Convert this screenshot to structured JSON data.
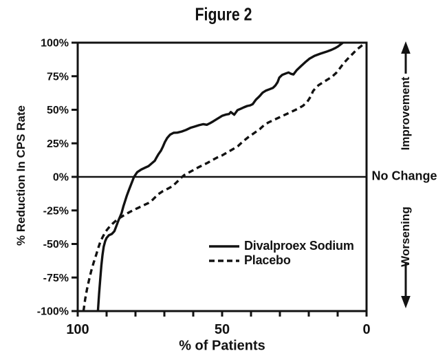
{
  "title": "Figure 2",
  "annotations": {
    "improvement": "Improvement",
    "no_change": "No Change",
    "worsening": "Worsening"
  },
  "colors": {
    "ink": "#121212",
    "background": "#ffffff"
  },
  "chart_data": {
    "type": "line",
    "title": "Figure 2",
    "xlabel": "% of Patients",
    "ylabel": "% Reduction In CPS Rate",
    "x_axis": {
      "range": [
        100,
        0
      ],
      "reversed": true,
      "tick_step": 10,
      "labeled_ticks": [
        {
          "value": 100,
          "label": "100"
        },
        {
          "value": 50,
          "label": "50"
        },
        {
          "value": 0,
          "label": "0"
        }
      ]
    },
    "y_axis": {
      "range": [
        -100,
        100
      ],
      "ticks": [
        {
          "value": 100,
          "label": "100%"
        },
        {
          "value": 75,
          "label": "75%"
        },
        {
          "value": 50,
          "label": "50%"
        },
        {
          "value": 25,
          "label": "25%"
        },
        {
          "value": 0,
          "label": "0%"
        },
        {
          "value": -25,
          "label": "-25%"
        },
        {
          "value": -50,
          "label": "-50%"
        },
        {
          "value": -75,
          "label": "-75%"
        },
        {
          "value": -100,
          "label": "-100%"
        }
      ]
    },
    "reference_line": {
      "y": 0,
      "label": "No Change"
    },
    "legend": {
      "position": "inside-lower-right"
    },
    "series": [
      {
        "name": "Divalproex Sodium",
        "style": "solid",
        "points": [
          [
            93,
            -100
          ],
          [
            92.6,
            -87
          ],
          [
            92.2,
            -76
          ],
          [
            91.8,
            -66
          ],
          [
            91.4,
            -58
          ],
          [
            91,
            -52
          ],
          [
            90.5,
            -48
          ],
          [
            90,
            -45.5
          ],
          [
            89.2,
            -43.5
          ],
          [
            88.2,
            -42.5
          ],
          [
            87.3,
            -40.5
          ],
          [
            86.6,
            -36.5
          ],
          [
            86,
            -33
          ],
          [
            85.4,
            -30
          ],
          [
            84.8,
            -27
          ],
          [
            84.2,
            -22
          ],
          [
            83.6,
            -18
          ],
          [
            83,
            -14
          ],
          [
            82.3,
            -10
          ],
          [
            81.5,
            -5.5
          ],
          [
            80.5,
            0
          ],
          [
            79.4,
            3.5
          ],
          [
            78,
            5.5
          ],
          [
            76.5,
            7
          ],
          [
            75.5,
            8
          ],
          [
            74.4,
            10
          ],
          [
            73.3,
            12
          ],
          [
            72.7,
            14.5
          ],
          [
            72,
            17
          ],
          [
            71.2,
            19.5
          ],
          [
            70.5,
            22.5
          ],
          [
            69.8,
            26
          ],
          [
            69,
            29
          ],
          [
            68,
            31.5
          ],
          [
            66.8,
            32.8
          ],
          [
            65.5,
            33
          ],
          [
            64,
            33.8
          ],
          [
            62.5,
            35
          ],
          [
            61,
            36.5
          ],
          [
            59.5,
            37.5
          ],
          [
            58,
            38.5
          ],
          [
            56.5,
            39.3
          ],
          [
            55.3,
            38.8
          ],
          [
            54.2,
            40
          ],
          [
            53,
            41.5
          ],
          [
            51.5,
            43.5
          ],
          [
            50,
            45.5
          ],
          [
            48.5,
            46.5
          ],
          [
            47.6,
            46.8
          ],
          [
            47,
            48.3
          ],
          [
            45.8,
            46.3
          ],
          [
            44.7,
            49.7
          ],
          [
            43.5,
            50.8
          ],
          [
            42.5,
            51.8
          ],
          [
            41.3,
            52.8
          ],
          [
            40.3,
            53.3
          ],
          [
            39.4,
            54.2
          ],
          [
            38.3,
            57.5
          ],
          [
            37.1,
            60
          ],
          [
            36,
            62.7
          ],
          [
            34.8,
            64.3
          ],
          [
            33.6,
            65.3
          ],
          [
            32.4,
            66.3
          ],
          [
            31.6,
            68
          ],
          [
            30.8,
            70.5
          ],
          [
            30.2,
            74
          ],
          [
            29.2,
            76
          ],
          [
            28,
            77
          ],
          [
            27,
            77.8
          ],
          [
            26.2,
            76.8
          ],
          [
            25.3,
            76.3
          ],
          [
            24.2,
            79.5
          ],
          [
            22.8,
            82.3
          ],
          [
            21.3,
            85.3
          ],
          [
            19.8,
            88
          ],
          [
            18,
            90.2
          ],
          [
            16,
            91.8
          ],
          [
            14,
            93.2
          ],
          [
            12.2,
            94.6
          ],
          [
            10.8,
            96
          ],
          [
            9.8,
            97.3
          ],
          [
            9,
            98.6
          ],
          [
            8.2,
            100
          ]
        ]
      },
      {
        "name": "Placebo",
        "style": "dashed",
        "points": [
          [
            98,
            -100
          ],
          [
            97.4,
            -91
          ],
          [
            96.8,
            -84
          ],
          [
            96.1,
            -77
          ],
          [
            95.3,
            -70
          ],
          [
            94.5,
            -64
          ],
          [
            93.6,
            -58
          ],
          [
            92.8,
            -52.5
          ],
          [
            92.2,
            -48.5
          ],
          [
            91.4,
            -45
          ],
          [
            90.4,
            -41
          ],
          [
            89.3,
            -38
          ],
          [
            88,
            -35
          ],
          [
            86.6,
            -32.3
          ],
          [
            85.2,
            -30.2
          ],
          [
            83.8,
            -28.4
          ],
          [
            82.2,
            -26.4
          ],
          [
            80.6,
            -24.6
          ],
          [
            79,
            -23
          ],
          [
            77.3,
            -21.3
          ],
          [
            75.6,
            -19.6
          ],
          [
            74,
            -17
          ],
          [
            72.2,
            -13
          ],
          [
            70.5,
            -10.6
          ],
          [
            68.8,
            -8.8
          ],
          [
            67.1,
            -6.8
          ],
          [
            65.5,
            -3.5
          ],
          [
            64.2,
            -0.6
          ],
          [
            63,
            1.5
          ],
          [
            61.5,
            3.3
          ],
          [
            60,
            5
          ],
          [
            58.3,
            7
          ],
          [
            56.6,
            8.8
          ],
          [
            55,
            10.5
          ],
          [
            53.4,
            12.5
          ],
          [
            51.8,
            14.3
          ],
          [
            50,
            16
          ],
          [
            48,
            18.5
          ],
          [
            46,
            21
          ],
          [
            44.5,
            23
          ],
          [
            43,
            26
          ],
          [
            41,
            29.5
          ],
          [
            39,
            32.5
          ],
          [
            37,
            35.5
          ],
          [
            35.5,
            38.5
          ],
          [
            34,
            40.5
          ],
          [
            32,
            42.5
          ],
          [
            30,
            44.5
          ],
          [
            28,
            46.5
          ],
          [
            26,
            48.5
          ],
          [
            24,
            50.5
          ],
          [
            22,
            53
          ],
          [
            20.5,
            56
          ],
          [
            19.3,
            60
          ],
          [
            18.5,
            64
          ],
          [
            17.5,
            66.5
          ],
          [
            16.5,
            68.5
          ],
          [
            15,
            70.5
          ],
          [
            13.5,
            72.5
          ],
          [
            12,
            74.5
          ],
          [
            10.5,
            77.5
          ],
          [
            9.2,
            81
          ],
          [
            8,
            84.5
          ],
          [
            6.5,
            88
          ],
          [
            5,
            91.3
          ],
          [
            3.4,
            94.8
          ],
          [
            1.8,
            97.5
          ],
          [
            0.6,
            100
          ]
        ]
      }
    ]
  }
}
